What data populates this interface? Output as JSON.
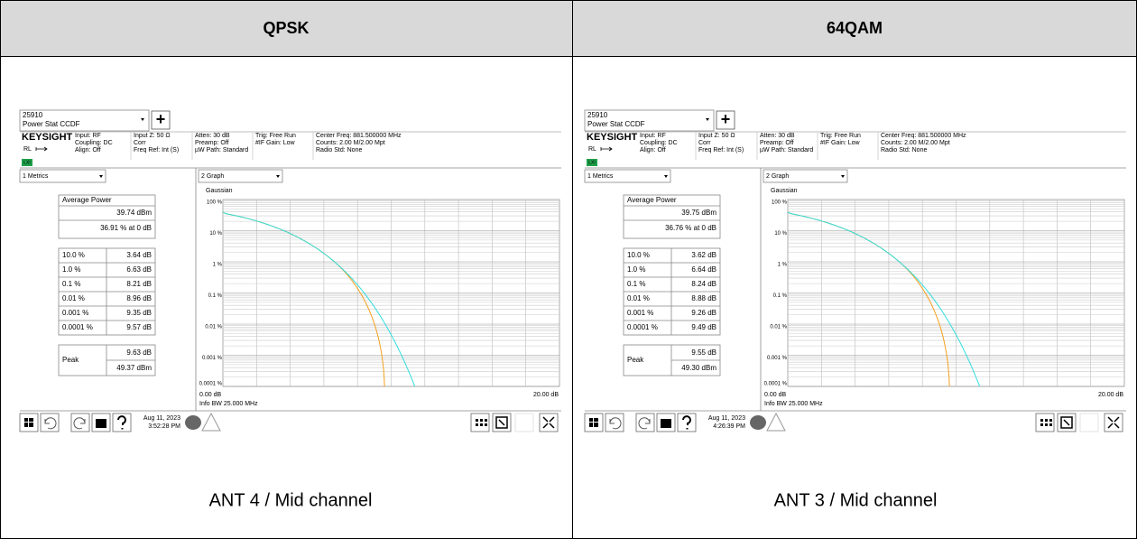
{
  "table": {
    "headers": [
      "QPSK",
      "64QAM"
    ],
    "panels": [
      {
        "caption": "ANT 4 / Mid channel",
        "screen": {
          "window_title": "25910",
          "window_subtitle": "Power Stat CCDF",
          "add_button": "+",
          "brand": "KEYSIGHT",
          "rl": "RL",
          "lxi": "LXI",
          "status": [
            [
              "Input: RF",
              "Coupling: DC",
              "Align: Off"
            ],
            [
              "Input Z: 50 Ω",
              "Corr",
              "Freq Ref: Int (S)"
            ],
            [
              "Atten: 30 dB",
              "Preamp: Off",
              "µW Path: Standard"
            ],
            [
              "Trig: Free Run",
              "#IF Gain: Low"
            ],
            [
              "Center Freq: 881.500000 MHz",
              "Counts: 2.00 M/2.00 Mpt",
              "Radio Std: None"
            ]
          ],
          "metrics_tab": "1 Metrics",
          "graph_tab": "2 Graph",
          "average_power": {
            "label": "Average Power",
            "dbm": "39.74 dBm",
            "pct": "36.91 % at 0 dB"
          },
          "stats": [
            [
              "10.0 %",
              "3.64 dB"
            ],
            [
              "1.0 %",
              "6.63 dB"
            ],
            [
              "0.1 %",
              "8.21 dB"
            ],
            [
              "0.01 %",
              "8.96 dB"
            ],
            [
              "0.001 %",
              "9.35 dB"
            ],
            [
              "0.0001 %",
              "9.57 dB"
            ]
          ],
          "peak": {
            "label": "Peak",
            "db": "9.63 dB",
            "dbm": "49.37 dBm"
          },
          "trace": "Gaussian",
          "yticks": [
            "100 %",
            "10 %",
            "1 %",
            "0.1 %",
            "0.01 %",
            "0.001 %",
            "0.0001 %"
          ],
          "x_start": "0.00 dB",
          "x_end": "20.00 dB",
          "info_bw": "Info BW 25.000 MHz",
          "date": "Aug 11, 2023",
          "time": "3:52:28 PM"
        }
      },
      {
        "caption": "ANT 3 / Mid channel",
        "screen": {
          "window_title": "25910",
          "window_subtitle": "Power Stat CCDF",
          "add_button": "+",
          "brand": "KEYSIGHT",
          "rl": "RL",
          "lxi": "LXI",
          "status": [
            [
              "Input: RF",
              "Coupling: DC",
              "Align: Off"
            ],
            [
              "Input Z: 50 Ω",
              "Corr",
              "Freq Ref: Int (S)"
            ],
            [
              "Atten: 30 dB",
              "Preamp: Off",
              "µW Path: Standard"
            ],
            [
              "Trig: Free Run",
              "#IF Gain: Low"
            ],
            [
              "Center Freq: 881.500000 MHz",
              "Counts: 2.00 M/2.00 Mpt",
              "Radio Std: None"
            ]
          ],
          "metrics_tab": "1 Metrics",
          "graph_tab": "2 Graph",
          "average_power": {
            "label": "Average Power",
            "dbm": "39.75 dBm",
            "pct": "36.76 % at 0 dB"
          },
          "stats": [
            [
              "10.0 %",
              "3.62 dB"
            ],
            [
              "1.0 %",
              "6.64 dB"
            ],
            [
              "0.1 %",
              "8.24 dB"
            ],
            [
              "0.01 %",
              "8.88 dB"
            ],
            [
              "0.001 %",
              "9.26 dB"
            ],
            [
              "0.0001 %",
              "9.49 dB"
            ]
          ],
          "peak": {
            "label": "Peak",
            "db": "9.55 dB",
            "dbm": "49.30 dBm"
          },
          "trace": "Gaussian",
          "yticks": [
            "100 %",
            "10 %",
            "1 %",
            "0.1 %",
            "0.01 %",
            "0.001 %",
            "0.0001 %"
          ],
          "x_start": "0.00 dB",
          "x_end": "20.00 dB",
          "info_bw": "Info BW 25.000 MHz",
          "date": "Aug 11, 2023",
          "time": "4:26:39 PM"
        }
      }
    ]
  }
}
